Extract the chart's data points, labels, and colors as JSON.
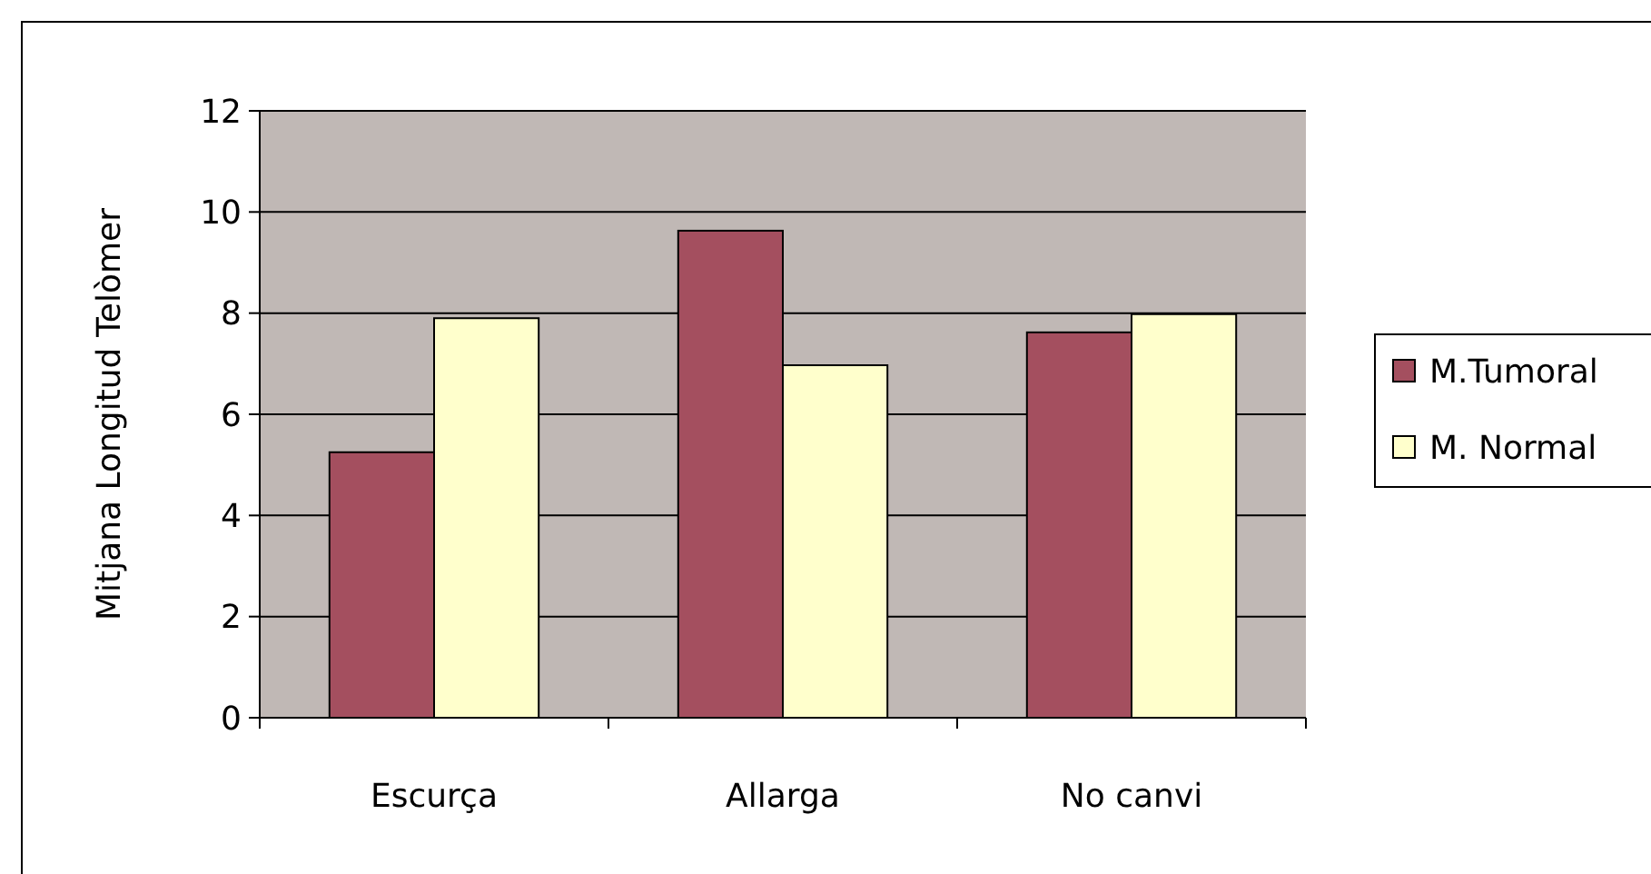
{
  "chart_data": {
    "type": "bar",
    "ylabel": "Mitjana Longitud Telòmer",
    "categories": [
      "Escurça",
      "Allarga",
      "No canvi"
    ],
    "series": [
      {
        "name": "M.Tumoral",
        "color": "#a44f5f",
        "values": [
          5.25,
          9.63,
          7.62
        ]
      },
      {
        "name": "M. Normal",
        "color": "#ffffcc",
        "values": [
          7.9,
          6.97,
          7.98
        ]
      }
    ],
    "ylim": [
      0,
      12
    ],
    "yticks": [
      0,
      2,
      4,
      6,
      8,
      10,
      12
    ],
    "grid": "y",
    "legend": "right"
  }
}
